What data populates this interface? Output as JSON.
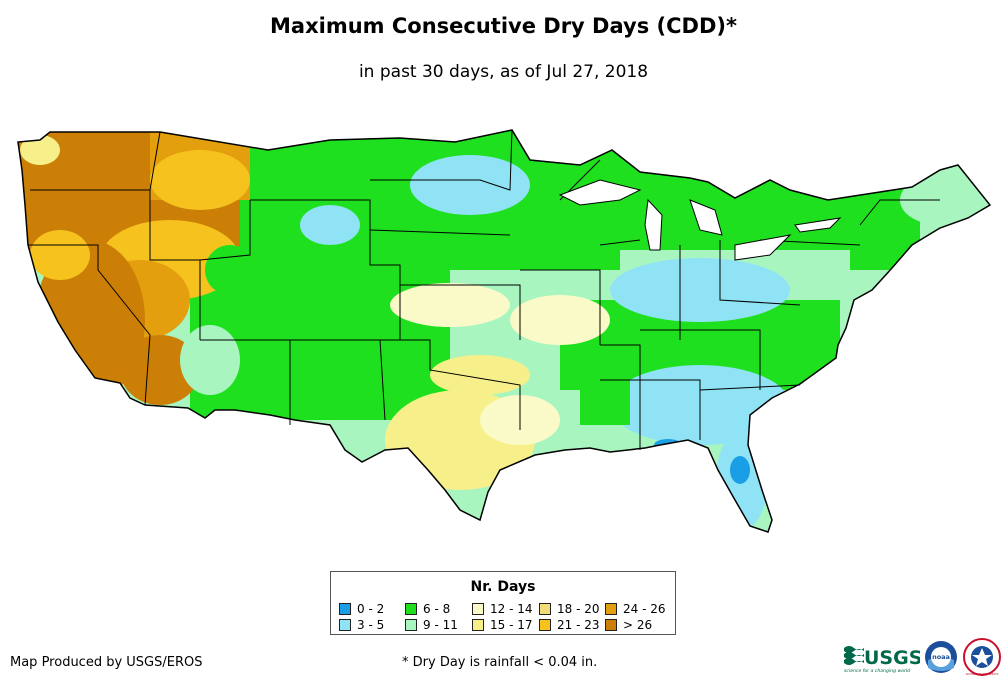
{
  "title": "Maximum Consecutive Dry Days (CDD)*",
  "subtitle": "in past 30 days, as of Jul 27, 2018",
  "legend": {
    "title": "Nr. Days",
    "items": [
      {
        "label": "0 - 2",
        "color": "#1a9fe6"
      },
      {
        "label": "3 - 5",
        "color": "#8fe3f5"
      },
      {
        "label": "6 - 8",
        "color": "#1fe01f"
      },
      {
        "label": "9 - 11",
        "color": "#a8f5c0"
      },
      {
        "label": "12 - 14",
        "color": "#fafac8"
      },
      {
        "label": "15 - 17",
        "color": "#f7f08a"
      },
      {
        "label": "18 - 20",
        "color": "#f0dc78"
      },
      {
        "label": "21 - 23",
        "color": "#f5c21e"
      },
      {
        "label": "24 - 26",
        "color": "#e39f0e"
      },
      {
        "label": "> 26",
        "color": "#cc7f06"
      }
    ]
  },
  "credit": "Map Produced by USGS/EROS",
  "footnote": "* Dry Day is rainfall < 0.04 in.",
  "logos": {
    "usgs": "USGS",
    "usgs_tagline": "science for a changing world",
    "noaa": "noaa",
    "nws": "NATIONAL WEATHER SERVICE"
  }
}
